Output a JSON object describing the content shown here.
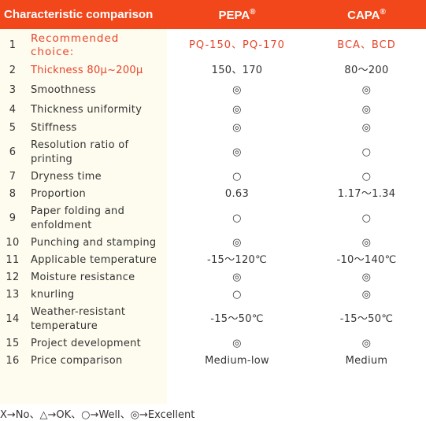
{
  "header": {
    "characteristic": "Characteristic comparison",
    "pepa": "PEPA",
    "capa": "CAPA",
    "registered": "®"
  },
  "rows": [
    {
      "no": "1",
      "label": "Recommended choice:",
      "pepa": "PQ-150、PQ-170",
      "capa": "BCA、BCD"
    },
    {
      "no": "2",
      "label": "Thickness 80μ~200μ",
      "pepa": "150、170",
      "capa": "80～200"
    },
    {
      "no": "3",
      "label": "Smoothness",
      "pepa": "◎",
      "capa": "◎"
    },
    {
      "no": "4",
      "label": "Thickness uniformity",
      "pepa": "◎",
      "capa": "◎"
    },
    {
      "no": "5",
      "label": "Stiffness",
      "pepa": "◎",
      "capa": "◎"
    },
    {
      "no": "6",
      "label": "Resolution ratio of printing",
      "pepa": "◎",
      "capa": "○"
    },
    {
      "no": "7",
      "label": "Dryness time",
      "pepa": "○",
      "capa": "○"
    },
    {
      "no": "8",
      "label": "Proportion",
      "pepa": "0.63",
      "capa": "1.17～1.34"
    },
    {
      "no": "9",
      "label": "Paper folding and enfoldment",
      "pepa": "○",
      "capa": "○"
    },
    {
      "no": "10",
      "label": "Punching and stamping",
      "pepa": "◎",
      "capa": "◎"
    },
    {
      "no": "11",
      "label": "Applicable temperature",
      "pepa": "-15～120℃",
      "capa": "-10～140℃"
    },
    {
      "no": "12",
      "label": "Moisture resistance",
      "pepa": "◎",
      "capa": "◎"
    },
    {
      "no": "13",
      "label": "knurling",
      "pepa": "○",
      "capa": "◎"
    },
    {
      "no": "14",
      "label": "Weather-resistant temperature",
      "pepa": "-15～50℃",
      "capa": "-15～50℃"
    },
    {
      "no": "15",
      "label": "Project development",
      "pepa": "◎",
      "capa": "◎"
    },
    {
      "no": "16",
      "label": "Price comparison",
      "pepa": "Medium-low",
      "capa": "Medium"
    }
  ],
  "legend": "X→No、△→OK、○→Well、◎→Excellent",
  "colors": {
    "header_bg": "#f2461b",
    "label_col_bg": "#fefcef",
    "highlight_text": "#e8432a"
  }
}
